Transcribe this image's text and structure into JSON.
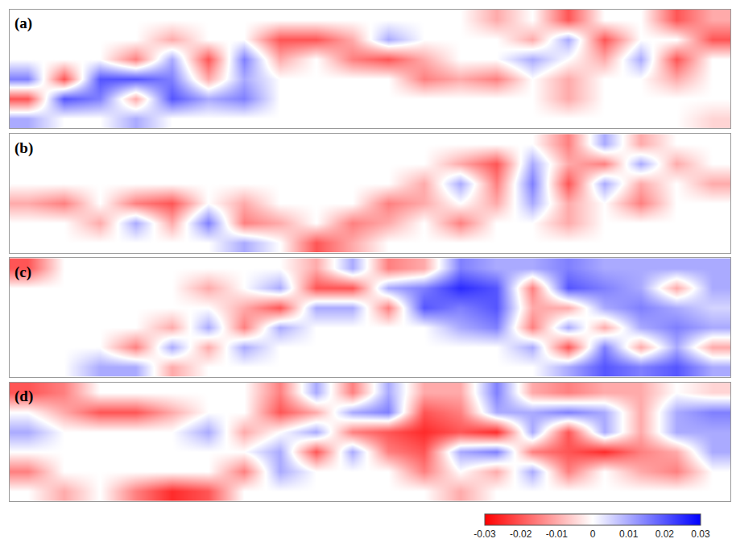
{
  "chart_data": {
    "type": "heatmap",
    "tick_labels": false,
    "zlim": [
      -0.03,
      0.03
    ],
    "zticks": [
      -0.03,
      -0.02,
      -0.01,
      0,
      0.01,
      0.02,
      0.03
    ],
    "panels": [
      {
        "label": "(a)",
        "z": [
          [
            0,
            0,
            0,
            0,
            0,
            0,
            0,
            0,
            0,
            0,
            0,
            0,
            0,
            -0.01,
            0,
            -0.02,
            0,
            0,
            -0.02,
            -0.01
          ],
          [
            0,
            0,
            0,
            0,
            -0.01,
            0,
            0,
            -0.02,
            -0.02,
            -0.01,
            0.01,
            0,
            0,
            0,
            -0.01,
            0.01,
            -0.02,
            0,
            0,
            -0.02
          ],
          [
            0,
            0,
            0,
            -0.015,
            0.01,
            -0.02,
            0.015,
            -0.01,
            0,
            -0.015,
            -0.02,
            -0.01,
            0,
            0,
            0.01,
            0,
            -0.01,
            0.01,
            -0.02,
            0
          ],
          [
            0.015,
            -0.02,
            0.02,
            0.02,
            0.015,
            -0.01,
            0.01,
            0,
            0,
            0,
            0,
            -0.015,
            -0.01,
            -0.015,
            0,
            -0.01,
            0,
            0,
            -0.01,
            0
          ],
          [
            -0.02,
            0.02,
            0.015,
            -0.01,
            0.02,
            0.01,
            0.015,
            0,
            0,
            0,
            0,
            0,
            0,
            0,
            0,
            -0.01,
            0,
            0,
            0,
            0
          ],
          [
            0.01,
            0,
            0,
            0.01,
            0,
            0,
            0,
            0,
            0,
            0,
            0,
            0,
            0,
            0,
            0,
            0,
            0,
            0,
            0,
            -0.005
          ]
        ]
      },
      {
        "label": "(b)",
        "z": [
          [
            0,
            0,
            0,
            0,
            0,
            0,
            0,
            0,
            0,
            0,
            0,
            0,
            0,
            0,
            0,
            -0.015,
            0.01,
            -0.01,
            0,
            0
          ],
          [
            0,
            0,
            0,
            0,
            0,
            0,
            0,
            0,
            0,
            0,
            0,
            0,
            -0.01,
            -0.02,
            0.01,
            -0.01,
            -0.015,
            0.01,
            -0.01,
            0
          ],
          [
            0,
            0,
            0,
            0,
            0,
            0,
            0,
            0,
            0,
            0,
            0,
            -0.01,
            0.01,
            -0.015,
            0.015,
            -0.02,
            0.01,
            -0.01,
            0,
            -0.01
          ],
          [
            -0.01,
            -0.015,
            0,
            -0.015,
            -0.02,
            0,
            -0.01,
            0,
            0,
            0,
            -0.015,
            -0.01,
            0,
            -0.01,
            0.01,
            -0.01,
            0,
            -0.015,
            0,
            0
          ],
          [
            0,
            0,
            -0.01,
            0.01,
            -0.01,
            0.015,
            -0.015,
            -0.01,
            0,
            -0.015,
            -0.01,
            0,
            -0.015,
            0,
            0,
            -0.01,
            0,
            0,
            0,
            0
          ],
          [
            0,
            0,
            0,
            0,
            0,
            0,
            0.01,
            0,
            -0.02,
            -0.01,
            0,
            0,
            0,
            0,
            0,
            0,
            0,
            0,
            0,
            0
          ]
        ]
      },
      {
        "label": "(c)",
        "z": [
          [
            -0.02,
            0,
            0,
            0,
            0,
            0,
            0,
            0,
            -0.01,
            0.01,
            -0.015,
            -0.01,
            0.015,
            0.01,
            0.01,
            0.015,
            0.01,
            0.01,
            0.01,
            0.01
          ],
          [
            0,
            0,
            0,
            0,
            0,
            -0.01,
            0,
            0.01,
            -0.02,
            -0.02,
            0.01,
            0.015,
            0.025,
            0.02,
            -0.015,
            0.02,
            0.015,
            0.01,
            -0.01,
            0.01
          ],
          [
            0,
            0,
            0,
            0,
            0,
            0,
            -0.01,
            -0.02,
            0.01,
            0.01,
            -0.015,
            0.02,
            0.015,
            0.02,
            -0.01,
            -0.01,
            0.01,
            0.015,
            0.01,
            0.005
          ],
          [
            0,
            0,
            0,
            0,
            -0.01,
            0.01,
            -0.015,
            0.01,
            0,
            0,
            0,
            0,
            0.01,
            0.015,
            -0.015,
            0.01,
            -0.01,
            0.01,
            0.015,
            0.01
          ],
          [
            0,
            0,
            0,
            -0.015,
            0.01,
            -0.01,
            0.01,
            0,
            0,
            0,
            0,
            0,
            0,
            0,
            0.01,
            -0.02,
            0.015,
            -0.01,
            0.01,
            -0.01
          ],
          [
            0,
            0,
            0.01,
            0.01,
            -0.01,
            0,
            0,
            0,
            0,
            0,
            0,
            0,
            0,
            0,
            0,
            0.01,
            0.02,
            0.015,
            0.02,
            0.01
          ]
        ]
      },
      {
        "label": "(d)",
        "z": [
          [
            -0.02,
            -0.015,
            0,
            0,
            0,
            0,
            0,
            -0.015,
            0.01,
            -0.015,
            0.01,
            -0.01,
            -0.01,
            0.015,
            -0.01,
            -0.015,
            -0.01,
            -0.01,
            0,
            -0.005
          ],
          [
            0,
            -0.01,
            -0.02,
            -0.02,
            -0.01,
            0,
            0,
            -0.02,
            -0.01,
            0.01,
            0.015,
            -0.02,
            -0.015,
            0.01,
            0.01,
            0.015,
            0.01,
            -0.01,
            0.01,
            0.015
          ],
          [
            0.01,
            0,
            0,
            0,
            0,
            0.01,
            -0.01,
            0,
            0.01,
            -0.015,
            -0.02,
            -0.025,
            -0.02,
            -0.025,
            0.01,
            -0.02,
            0.01,
            -0.01,
            0.01,
            0.01
          ],
          [
            0,
            0,
            0,
            0,
            0,
            0,
            0,
            0.01,
            -0.02,
            0.01,
            -0.015,
            -0.02,
            0.01,
            0.015,
            -0.015,
            -0.02,
            -0.025,
            -0.015,
            -0.01,
            0.01
          ],
          [
            -0.015,
            0,
            0,
            0,
            0,
            0,
            -0.015,
            0.01,
            0,
            0,
            0,
            -0.015,
            0,
            -0.01,
            0.01,
            -0.015,
            0,
            -0.01,
            -0.015,
            0
          ],
          [
            0,
            -0.01,
            0,
            -0.015,
            -0.025,
            -0.02,
            0,
            0,
            0,
            0,
            0,
            0,
            -0.01,
            0,
            0,
            0,
            0,
            0,
            0,
            0
          ]
        ]
      }
    ]
  }
}
